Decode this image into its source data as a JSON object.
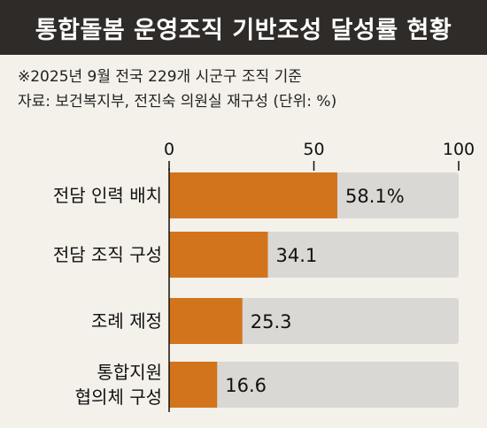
{
  "chart_data": {
    "type": "bar",
    "orientation": "horizontal",
    "title": "통합돌봄 운영조직 기반조성 달성률 현황",
    "notes": [
      "※2025년 9월 전국 229개 시군구 조직 기준",
      "자료: 보건복지부, 전진숙 의원실 재구성  (단위: %)"
    ],
    "categories": [
      [
        "전담 인력 배치"
      ],
      [
        "전담 조직 구성"
      ],
      [
        "조례 제정"
      ],
      [
        "통합지원",
        "협의체 구성"
      ]
    ],
    "values": [
      58.1,
      34.1,
      25.3,
      16.6
    ],
    "value_labels": [
      "58.1%",
      "34.1",
      "25.3",
      "16.6"
    ],
    "xlim": [
      0,
      100
    ],
    "xticks": [
      0,
      50,
      100
    ],
    "colors": {
      "bar": "#d2741c",
      "track": "#d9d8d4",
      "title_bg": "#2f2b29"
    }
  }
}
